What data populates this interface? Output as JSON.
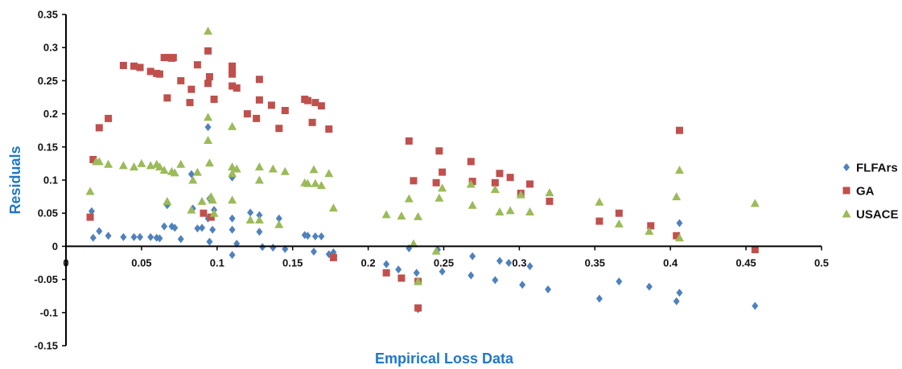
{
  "chart_data": {
    "type": "scatter",
    "title": "",
    "xlabel": "Empirical Loss Data",
    "ylabel": "Residuals",
    "xlim": [
      0,
      0.5
    ],
    "ylim": [
      -0.15,
      0.35
    ],
    "x_ticks": [
      0,
      0.05,
      0.1,
      0.15,
      0.2,
      0.25,
      0.3,
      0.35,
      0.4,
      0.45,
      0.5
    ],
    "x_tick_labels": [
      "0",
      "0.05",
      "0.1",
      "0.15",
      "0.2",
      "0.25",
      "0.3",
      "0.35",
      "0.4",
      "0.45",
      "0.5"
    ],
    "y_ticks": [
      -0.15,
      -0.1,
      -0.05,
      0,
      0.05,
      0.1,
      0.15,
      0.2,
      0.25,
      0.3,
      0.35
    ],
    "y_tick_labels": [
      "-0.15",
      "-0.1",
      "-0.05",
      "0",
      "0.05",
      "0.1",
      "0.15",
      "0.2",
      "0.25",
      "0.3",
      "0.35"
    ],
    "grid": false,
    "legend_position": "right",
    "series": [
      {
        "name": "FLFArs",
        "color": "#4F81BD",
        "marker": "diamond",
        "points": [
          [
            0.017,
            0.053
          ],
          [
            0.018,
            0.013
          ],
          [
            0.022,
            0.023
          ],
          [
            0.028,
            0.016
          ],
          [
            0.038,
            0.014
          ],
          [
            0.045,
            0.014
          ],
          [
            0.049,
            0.014
          ],
          [
            0.056,
            0.014
          ],
          [
            0.06,
            0.013
          ],
          [
            0.062,
            0.012
          ],
          [
            0.065,
            0.03
          ],
          [
            0.067,
            0.062
          ],
          [
            0.07,
            0.03
          ],
          [
            0.072,
            0.028
          ],
          [
            0.076,
            0.011
          ],
          [
            0.083,
            0.109
          ],
          [
            0.084,
            0.057
          ],
          [
            0.087,
            0.027
          ],
          [
            0.09,
            0.028
          ],
          [
            0.094,
            0.042
          ],
          [
            0.094,
            0.18
          ],
          [
            0.095,
            0.072
          ],
          [
            0.095,
            0.007
          ],
          [
            0.097,
            0.025
          ],
          [
            0.098,
            0.055
          ],
          [
            0.11,
            0.104
          ],
          [
            0.11,
            0.025
          ],
          [
            0.11,
            0.042
          ],
          [
            0.11,
            -0.013
          ],
          [
            0.113,
            0.004
          ],
          [
            0.122,
            0.051
          ],
          [
            0.128,
            0.047
          ],
          [
            0.128,
            0.022
          ],
          [
            0.13,
            -0.001
          ],
          [
            0.137,
            -0.002
          ],
          [
            0.141,
            0.042
          ],
          [
            0.145,
            -0.004
          ],
          [
            0.158,
            0.017
          ],
          [
            0.16,
            0.016
          ],
          [
            0.164,
            -0.008
          ],
          [
            0.165,
            0.015
          ],
          [
            0.169,
            0.015
          ],
          [
            0.174,
            -0.012
          ],
          [
            0.177,
            -0.009
          ],
          [
            0.212,
            -0.027
          ],
          [
            0.22,
            -0.035
          ],
          [
            0.227,
            -0.003
          ],
          [
            0.232,
            -0.04
          ],
          [
            0.233,
            -0.095
          ],
          [
            0.246,
            -0.005
          ],
          [
            0.249,
            -0.038
          ],
          [
            0.268,
            -0.044
          ],
          [
            0.269,
            -0.015
          ],
          [
            0.284,
            -0.051
          ],
          [
            0.287,
            -0.022
          ],
          [
            0.293,
            -0.025
          ],
          [
            0.302,
            -0.058
          ],
          [
            0.307,
            -0.03
          ],
          [
            0.319,
            -0.065
          ],
          [
            0.353,
            -0.079
          ],
          [
            0.366,
            -0.053
          ],
          [
            0.386,
            -0.061
          ],
          [
            0.404,
            -0.083
          ],
          [
            0.406,
            -0.07
          ],
          [
            0.406,
            0.035
          ],
          [
            0.456,
            -0.09
          ]
        ]
      },
      {
        "name": "GA",
        "color": "#C0504D",
        "marker": "square",
        "points": [
          [
            0.016,
            0.044
          ],
          [
            0.018,
            0.131
          ],
          [
            0.022,
            0.179
          ],
          [
            0.028,
            0.193
          ],
          [
            0.038,
            0.273
          ],
          [
            0.045,
            0.272
          ],
          [
            0.049,
            0.27
          ],
          [
            0.056,
            0.264
          ],
          [
            0.06,
            0.261
          ],
          [
            0.062,
            0.26
          ],
          [
            0.065,
            0.285
          ],
          [
            0.067,
            0.224
          ],
          [
            0.068,
            0.285
          ],
          [
            0.07,
            0.284
          ],
          [
            0.071,
            0.285
          ],
          [
            0.076,
            0.25
          ],
          [
            0.082,
            0.217
          ],
          [
            0.083,
            0.237
          ],
          [
            0.087,
            0.274
          ],
          [
            0.091,
            0.05
          ],
          [
            0.094,
            0.295
          ],
          [
            0.094,
            0.246
          ],
          [
            0.095,
            0.256
          ],
          [
            0.096,
            0.044
          ],
          [
            0.098,
            0.222
          ],
          [
            0.11,
            0.272
          ],
          [
            0.11,
            0.266
          ],
          [
            0.11,
            0.26
          ],
          [
            0.11,
            0.242
          ],
          [
            0.113,
            0.239
          ],
          [
            0.12,
            0.2
          ],
          [
            0.126,
            0.193
          ],
          [
            0.128,
            0.221
          ],
          [
            0.128,
            0.252
          ],
          [
            0.136,
            0.213
          ],
          [
            0.141,
            0.178
          ],
          [
            0.145,
            0.205
          ],
          [
            0.158,
            0.222
          ],
          [
            0.16,
            0.22
          ],
          [
            0.163,
            0.187
          ],
          [
            0.165,
            0.217
          ],
          [
            0.169,
            0.212
          ],
          [
            0.174,
            0.177
          ],
          [
            0.177,
            -0.017
          ],
          [
            0.212,
            -0.04
          ],
          [
            0.222,
            -0.048
          ],
          [
            0.227,
            0.159
          ],
          [
            0.23,
            0.099
          ],
          [
            0.233,
            -0.093
          ],
          [
            0.233,
            -0.053
          ],
          [
            0.245,
            0.096
          ],
          [
            0.247,
            0.144
          ],
          [
            0.249,
            0.112
          ],
          [
            0.268,
            0.128
          ],
          [
            0.269,
            0.098
          ],
          [
            0.284,
            0.096
          ],
          [
            0.287,
            0.11
          ],
          [
            0.294,
            0.104
          ],
          [
            0.301,
            0.08
          ],
          [
            0.307,
            0.094
          ],
          [
            0.32,
            0.068
          ],
          [
            0.353,
            0.038
          ],
          [
            0.366,
            0.05
          ],
          [
            0.387,
            0.031
          ],
          [
            0.404,
            0.016
          ],
          [
            0.406,
            0.175
          ],
          [
            0.456,
            -0.005
          ]
        ]
      },
      {
        "name": "USACE",
        "color": "#9BBB59",
        "marker": "triangle",
        "points": [
          [
            0.016,
            0.083
          ],
          [
            0.02,
            0.128
          ],
          [
            0.022,
            0.128
          ],
          [
            0.028,
            0.124
          ],
          [
            0.038,
            0.122
          ],
          [
            0.045,
            0.12
          ],
          [
            0.05,
            0.125
          ],
          [
            0.056,
            0.122
          ],
          [
            0.06,
            0.124
          ],
          [
            0.062,
            0.12
          ],
          [
            0.065,
            0.115
          ],
          [
            0.067,
            0.068
          ],
          [
            0.07,
            0.113
          ],
          [
            0.072,
            0.111
          ],
          [
            0.076,
            0.124
          ],
          [
            0.083,
            0.055
          ],
          [
            0.084,
            0.1
          ],
          [
            0.087,
            0.112
          ],
          [
            0.09,
            0.068
          ],
          [
            0.094,
            0.325
          ],
          [
            0.094,
            0.195
          ],
          [
            0.094,
            0.16
          ],
          [
            0.095,
            0.126
          ],
          [
            0.096,
            0.075
          ],
          [
            0.097,
            0.07
          ],
          [
            0.098,
            0.05
          ],
          [
            0.11,
            0.181
          ],
          [
            0.11,
            0.12
          ],
          [
            0.11,
            0.11
          ],
          [
            0.11,
            0.07
          ],
          [
            0.113,
            0.117
          ],
          [
            0.122,
            0.04
          ],
          [
            0.128,
            0.12
          ],
          [
            0.128,
            0.1
          ],
          [
            0.128,
            0.04
          ],
          [
            0.137,
            0.117
          ],
          [
            0.141,
            0.033
          ],
          [
            0.145,
            0.113
          ],
          [
            0.158,
            0.096
          ],
          [
            0.16,
            0.095
          ],
          [
            0.164,
            0.116
          ],
          [
            0.165,
            0.095
          ],
          [
            0.169,
            0.092
          ],
          [
            0.174,
            0.11
          ],
          [
            0.177,
            0.058
          ],
          [
            0.212,
            0.048
          ],
          [
            0.222,
            0.046
          ],
          [
            0.227,
            0.072
          ],
          [
            0.23,
            0.004
          ],
          [
            0.233,
            0.045
          ],
          [
            0.233,
            -0.053
          ],
          [
            0.245,
            -0.007
          ],
          [
            0.247,
            0.073
          ],
          [
            0.249,
            0.088
          ],
          [
            0.268,
            0.094
          ],
          [
            0.269,
            0.062
          ],
          [
            0.284,
            0.086
          ],
          [
            0.287,
            0.052
          ],
          [
            0.294,
            0.054
          ],
          [
            0.301,
            0.078
          ],
          [
            0.307,
            0.052
          ],
          [
            0.32,
            0.081
          ],
          [
            0.353,
            0.067
          ],
          [
            0.366,
            0.034
          ],
          [
            0.386,
            0.023
          ],
          [
            0.404,
            0.075
          ],
          [
            0.406,
            0.115
          ],
          [
            0.406,
            0.013
          ],
          [
            0.456,
            0.065
          ]
        ]
      }
    ]
  }
}
